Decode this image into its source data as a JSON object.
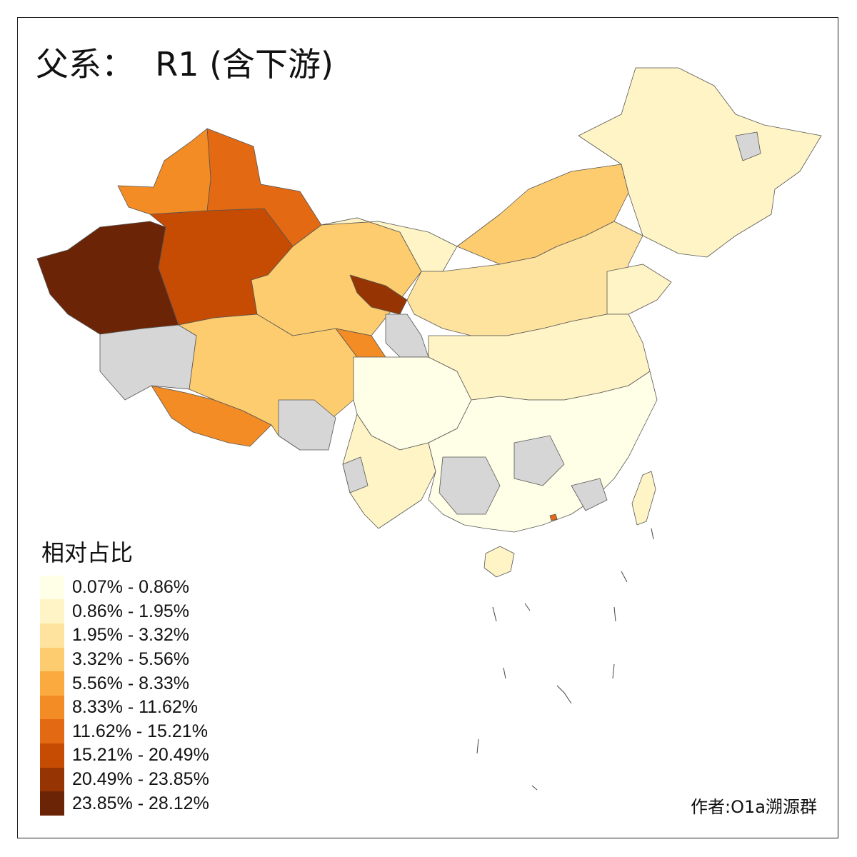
{
  "title": "父系：  R1 (含下游)",
  "legend": {
    "title": "相对占比",
    "items": [
      {
        "label": "0.07% - 0.86%",
        "color": "#FFFEE6"
      },
      {
        "label": "0.86% - 1.95%",
        "color": "#FFF4C6"
      },
      {
        "label": "1.95% - 3.32%",
        "color": "#FEE39E"
      },
      {
        "label": "3.32% - 5.56%",
        "color": "#FDCC6E"
      },
      {
        "label": "5.56% - 8.33%",
        "color": "#FBAA40"
      },
      {
        "label": "8.33% - 11.62%",
        "color": "#F38C24"
      },
      {
        "label": "11.62% - 15.21%",
        "color": "#E36A12"
      },
      {
        "label": "15.21% - 20.49%",
        "color": "#C64C04"
      },
      {
        "label": "20.49% - 23.85%",
        "color": "#963503"
      },
      {
        "label": "23.85% - 28.12%",
        "color": "#6B2506"
      }
    ]
  },
  "no_data_color": "#D6D6D6",
  "credit": "作者:O1a溯源群"
}
